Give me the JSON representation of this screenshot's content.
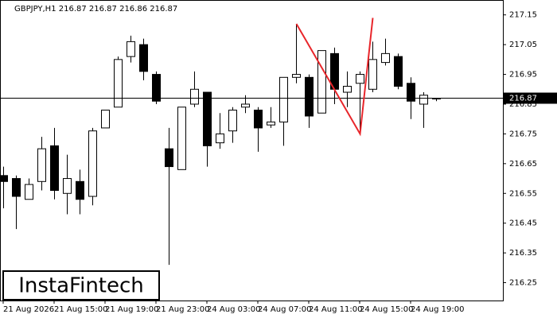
{
  "chart_data": {
    "type": "candlestick",
    "title": "GBPJPY,H1  216.87 216.87 216.86 216.87",
    "categories": [
      "21 Aug 2026",
      null,
      null,
      null,
      "21 Aug 15:00",
      null,
      null,
      null,
      "21 Aug 19:00",
      null,
      null,
      null,
      "21 Aug 23:00",
      null,
      null,
      null,
      "24 Aug 03:00",
      null,
      null,
      null,
      "24 Aug 07:00",
      null,
      null,
      null,
      "24 Aug 11:00",
      null,
      null,
      null,
      "24 Aug 15:00",
      null,
      null,
      null,
      "24 Aug 19:00",
      null,
      null
    ],
    "open": [
      216.61,
      216.6,
      216.53,
      216.59,
      216.71,
      216.55,
      216.59,
      216.54,
      216.77,
      216.84,
      217.01,
      217.05,
      216.95,
      216.7,
      216.63,
      216.85,
      216.89,
      216.72,
      216.76,
      216.84,
      216.83,
      216.78,
      216.79,
      216.94,
      216.94,
      216.82,
      217.02,
      216.89,
      216.92,
      216.9,
      216.99,
      217.01,
      216.92,
      216.85,
      216.87
    ],
    "high": [
      216.64,
      216.61,
      216.6,
      216.74,
      216.77,
      216.68,
      216.63,
      216.77,
      216.83,
      217.01,
      217.08,
      217.07,
      216.96,
      216.77,
      216.84,
      216.96,
      216.89,
      216.82,
      216.84,
      216.88,
      216.84,
      216.84,
      216.94,
      217.12,
      216.95,
      217.03,
      217.04,
      216.96,
      216.96,
      217.06,
      217.07,
      217.02,
      216.94,
      216.89,
      216.87
    ],
    "low": [
      216.5,
      216.43,
      216.53,
      216.56,
      216.53,
      216.48,
      216.48,
      216.51,
      216.77,
      216.84,
      216.99,
      216.93,
      216.85,
      216.31,
      216.63,
      216.84,
      216.64,
      216.7,
      216.72,
      216.82,
      216.69,
      216.77,
      216.71,
      216.92,
      216.77,
      216.82,
      216.85,
      216.84,
      216.76,
      216.89,
      216.98,
      216.9,
      216.8,
      216.77,
      216.86
    ],
    "close": [
      216.59,
      216.54,
      216.58,
      216.7,
      216.56,
      216.6,
      216.53,
      216.76,
      216.83,
      217.0,
      217.06,
      216.96,
      216.86,
      216.64,
      216.84,
      216.9,
      216.71,
      216.75,
      216.83,
      216.85,
      216.77,
      216.79,
      216.94,
      216.95,
      216.81,
      217.03,
      216.9,
      216.91,
      216.95,
      217.0,
      217.02,
      216.91,
      216.86,
      216.88,
      216.87
    ],
    "ylim": [
      216.19,
      217.2
    ],
    "yticks": [
      {
        "value": 216.25,
        "label": "216.25"
      },
      {
        "value": 216.35,
        "label": "216.35"
      },
      {
        "value": 216.45,
        "label": "216.45"
      },
      {
        "value": 216.55,
        "label": "216.55"
      },
      {
        "value": 216.65,
        "label": "216.65"
      },
      {
        "value": 216.75,
        "label": "216.75"
      },
      {
        "value": 216.85,
        "label": "216.85"
      },
      {
        "value": 216.95,
        "label": "216.95"
      },
      {
        "value": 217.05,
        "label": "217.05"
      },
      {
        "value": 217.15,
        "label": "217.15"
      }
    ],
    "current_price": 216.87,
    "pattern": {
      "color": "#e8262b",
      "points": [
        [
          23,
          217.12
        ],
        [
          28,
          216.75
        ],
        [
          29,
          217.14
        ]
      ]
    },
    "watermark": "InstaFintech"
  }
}
